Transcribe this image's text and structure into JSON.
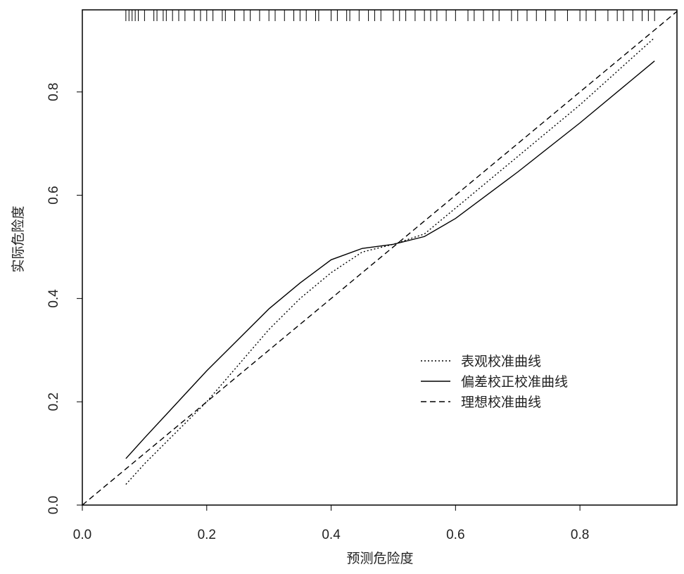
{
  "chart_data": {
    "type": "line",
    "xlabel": "预测危险度",
    "ylabel": "实际危险度",
    "xlim": [
      0,
      0.956
    ],
    "ylim": [
      0,
      0.959
    ],
    "xticks": [
      {
        "value": 0,
        "label": "0.0"
      },
      0.2,
      0.4,
      0.6,
      0.8
    ],
    "yticks": [
      {
        "value": 0,
        "label": "0.0"
      },
      0.2,
      0.4,
      0.6,
      0.8
    ],
    "legend": "right",
    "series": [
      {
        "name": "表观校准曲线",
        "color": "#000",
        "dash": "dotted",
        "x": [
          0.07,
          0.1,
          0.15,
          0.2,
          0.25,
          0.3,
          0.35,
          0.4,
          0.45,
          0.5,
          0.55,
          0.6,
          0.7,
          0.8,
          0.92
        ],
        "values": [
          0.04,
          0.08,
          0.14,
          0.2,
          0.27,
          0.34,
          0.4,
          0.45,
          0.49,
          0.505,
          0.525,
          0.575,
          0.675,
          0.775,
          0.905
        ]
      },
      {
        "name": "偏差校正校准曲线",
        "color": "#000",
        "dash": "solid",
        "x": [
          0.07,
          0.1,
          0.15,
          0.2,
          0.25,
          0.3,
          0.35,
          0.4,
          0.45,
          0.5,
          0.55,
          0.6,
          0.7,
          0.8,
          0.92
        ],
        "values": [
          0.09,
          0.13,
          0.195,
          0.26,
          0.32,
          0.38,
          0.43,
          0.475,
          0.497,
          0.505,
          0.52,
          0.555,
          0.645,
          0.74,
          0.86
        ]
      },
      {
        "name": "理想校准曲线",
        "color": "#000",
        "dash": "dashed",
        "x": [
          0,
          0.956
        ],
        "values": [
          0,
          0.956
        ]
      }
    ],
    "rug": [
      0.07,
      0.075,
      0.08,
      0.085,
      0.09,
      0.1,
      0.115,
      0.12,
      0.13,
      0.135,
      0.145,
      0.155,
      0.165,
      0.18,
      0.19,
      0.2,
      0.21,
      0.225,
      0.23,
      0.245,
      0.26,
      0.27,
      0.285,
      0.3,
      0.31,
      0.325,
      0.34,
      0.35,
      0.36,
      0.375,
      0.38,
      0.4,
      0.41,
      0.425,
      0.43,
      0.445,
      0.46,
      0.47,
      0.48,
      0.5,
      0.51,
      0.52,
      0.535,
      0.55,
      0.56,
      0.57,
      0.585,
      0.6,
      0.62,
      0.63,
      0.645,
      0.66,
      0.67,
      0.69,
      0.7,
      0.715,
      0.73,
      0.745,
      0.76,
      0.78,
      0.8,
      0.81,
      0.825,
      0.845,
      0.86,
      0.87,
      0.885,
      0.9,
      0.91,
      0.92
    ]
  }
}
